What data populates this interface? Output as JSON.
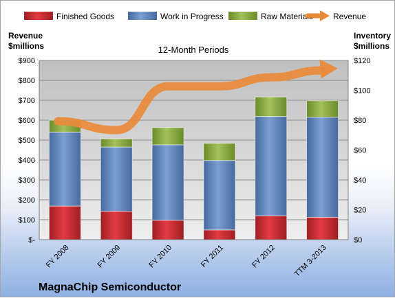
{
  "chart_data": {
    "type": "bar",
    "stacked": true,
    "subtitle": "12-Month Periods",
    "company": "MagnaChip Semiconductor",
    "left_axis": {
      "title_line1": "Revenue",
      "title_line2": "$millions",
      "ylim": [
        0,
        900
      ],
      "ticks": [
        "$-",
        "$100",
        "$200",
        "$300",
        "$400",
        "$500",
        "$600",
        "$700",
        "$800",
        "$900"
      ]
    },
    "right_axis": {
      "title_line1": "Inventory",
      "title_line2": "$millions",
      "ylim": [
        0,
        120
      ],
      "ticks": [
        "$0",
        "$20",
        "$40",
        "$60",
        "$80",
        "$100",
        "$120"
      ]
    },
    "categories": [
      "FY 2008",
      "FY 2009",
      "FY 2010",
      "FY 2011",
      "FY 2012",
      "TTM 3-2013"
    ],
    "series": [
      {
        "name": "Finished Goods",
        "axis": "right",
        "color": "#c0272d",
        "values": [
          22.5,
          19.0,
          13.0,
          6.5,
          16.0,
          15.0
        ]
      },
      {
        "name": "Work in Progress",
        "axis": "right",
        "color": "#5a80b8",
        "values": [
          49.5,
          43.0,
          50.5,
          46.5,
          66.5,
          67.0
        ]
      },
      {
        "name": "Raw Materials",
        "axis": "right",
        "color": "#84a63c",
        "values": [
          8.0,
          5.5,
          11.5,
          11.5,
          13.0,
          11.0
        ]
      },
      {
        "name": "Revenue",
        "axis": "left",
        "type": "line",
        "color": "#e98a3a",
        "values": [
          595,
          550,
          770,
          770,
          815,
          850
        ]
      }
    ],
    "grid": true,
    "legend_position": "top"
  }
}
